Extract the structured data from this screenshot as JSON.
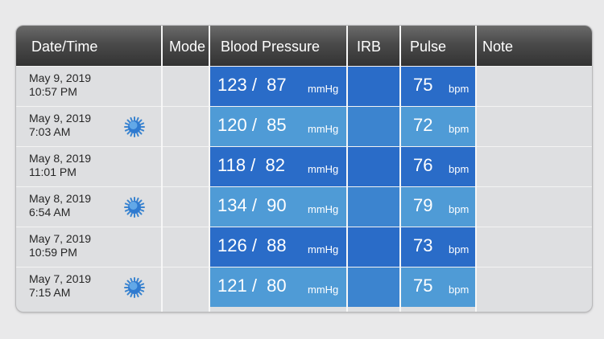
{
  "header": {
    "datetime": "Date/Time",
    "mode": "Mode",
    "bp": "Blood Pressure",
    "irb": "IRB",
    "pulse": "Pulse",
    "note": "Note"
  },
  "units": {
    "bp": "mmHg",
    "pulse": "bpm"
  },
  "colors": {
    "bp_dark": "#2a6cc8",
    "bp_light": "#4f9bd6",
    "irb_dark": "#2a6cc8",
    "irb_light": "#3c84cf",
    "header": "#444444",
    "row_bg": "#dedfe1"
  },
  "rows": [
    {
      "date": "May 9, 2019",
      "time": "10:57 PM",
      "mode_icon": "",
      "bp": "123 /  87",
      "pulse": "75"
    },
    {
      "date": "May 9, 2019",
      "time": "7:03 AM",
      "mode_icon": "sun-icon",
      "bp": "120 /  85",
      "pulse": "72"
    },
    {
      "date": "May 8, 2019",
      "time": "11:01 PM",
      "mode_icon": "",
      "bp": "118 /  82",
      "pulse": "76"
    },
    {
      "date": "May 8, 2019",
      "time": "6:54 AM",
      "mode_icon": "sun-icon",
      "bp": "134 /  90",
      "pulse": "79"
    },
    {
      "date": "May 7, 2019",
      "time": "10:59 PM",
      "mode_icon": "",
      "bp": "126 /  88",
      "pulse": "73"
    },
    {
      "date": "May 7, 2019",
      "time": "7:15 AM",
      "mode_icon": "sun-icon",
      "bp": "121 /  80",
      "pulse": "75"
    }
  ]
}
